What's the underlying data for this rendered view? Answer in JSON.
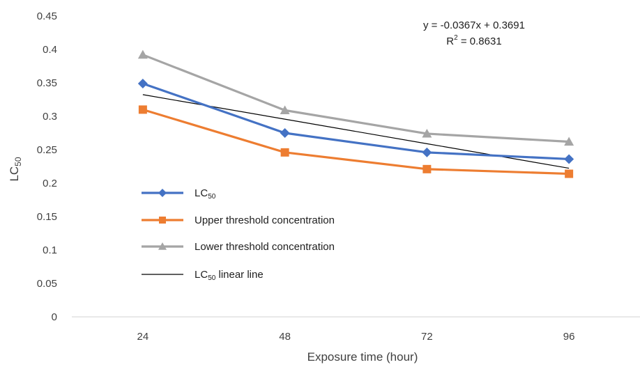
{
  "chart_data": {
    "type": "line",
    "categories": [
      "24",
      "48",
      "72",
      "96"
    ],
    "ylim": [
      0,
      0.45
    ],
    "yticks": [
      "0",
      "0.05",
      "0.1",
      "0.15",
      "0.2",
      "0.25",
      "0.3",
      "0.35",
      "0.4",
      "0.45"
    ],
    "xlabel": "Exposure time (hour)",
    "ylabel": {
      "main": "LC",
      "sub": "50"
    },
    "grid": false,
    "legend_position": "left-inside",
    "series": [
      {
        "key": "lc50",
        "name": "LC",
        "name_sub": "50",
        "name_suffix": "",
        "color": "#4472c4",
        "marker": "diamond",
        "values": [
          0.349,
          0.275,
          0.246,
          0.236
        ]
      },
      {
        "key": "upper",
        "name": "Upper threshold concentration",
        "name_sub": "",
        "name_suffix": "",
        "color": "#ed7d31",
        "marker": "square",
        "values": [
          0.31,
          0.246,
          0.221,
          0.214
        ]
      },
      {
        "key": "lower",
        "name": "Lower threshold concentration",
        "name_sub": "",
        "name_suffix": "",
        "color": "#a5a5a5",
        "marker": "triangle",
        "values": [
          0.392,
          0.309,
          0.274,
          0.262
        ]
      },
      {
        "key": "trend",
        "name": "LC",
        "name_sub": "50",
        "name_suffix": " linear line",
        "color": "#000000",
        "marker": "none",
        "values": [
          0.3324,
          0.2957,
          0.259,
          0.2223
        ]
      }
    ],
    "annotation": {
      "equation": "y = -0.0367x + 0.3691",
      "r2_label": "R",
      "r2_sup": "2",
      "r2_value": " = 0.8631"
    }
  }
}
